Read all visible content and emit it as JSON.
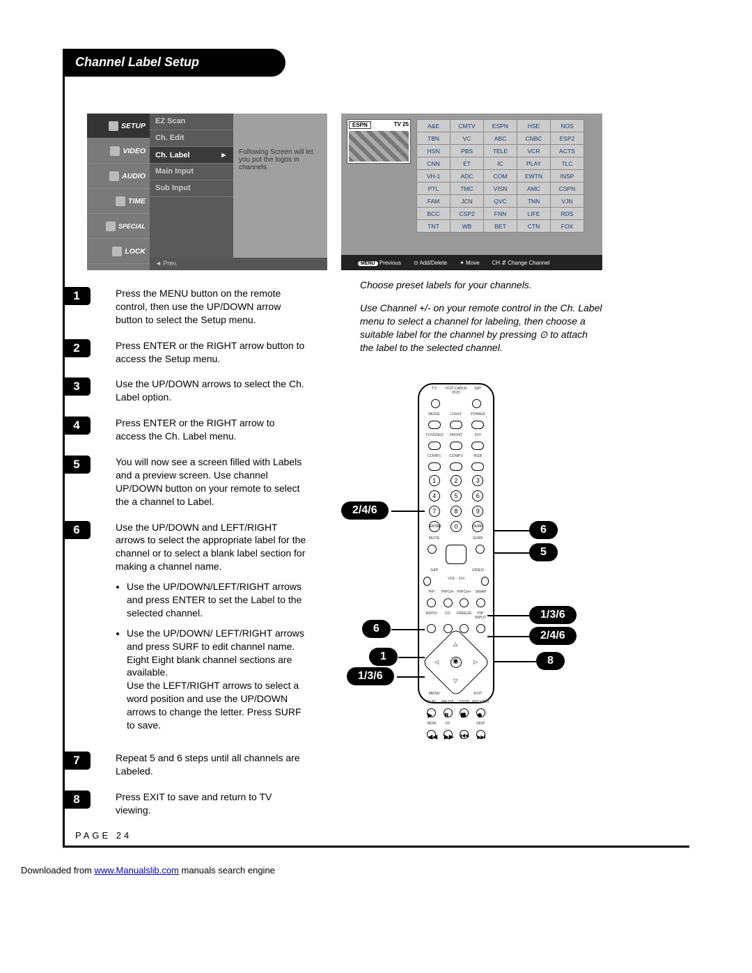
{
  "header": {
    "title": "Channel Label Setup"
  },
  "menu": {
    "tabs": [
      "SETUP",
      "VIDEO",
      "AUDIO",
      "TIME",
      "SPECIAL",
      "LOCK"
    ],
    "items": [
      "EZ Scan",
      "Ch. Edit",
      "Ch. Label",
      "Main Input",
      "Sub Input"
    ],
    "desc": "Following Screen will let you put the logos in channels",
    "footer_prev": "◄ Prev."
  },
  "labelscreen": {
    "preview_ch": "ESPN",
    "preview_num": "TV 25",
    "grid": [
      [
        "A&E",
        "CMTV",
        "ESPN",
        "HSE",
        "NOS"
      ],
      [
        "TBN",
        "VC",
        "ABC",
        "CNBC",
        "ESP2"
      ],
      [
        "HSN",
        "PBS",
        "TELE",
        "VCR",
        "ACTS"
      ],
      [
        "CNN",
        "ET",
        "IC",
        "PLAY",
        "TLC"
      ],
      [
        "VH-1",
        "ADC",
        "COM",
        "EWTN",
        "INSP"
      ],
      [
        "PTL",
        "TMC",
        "VISN",
        "AMC",
        "CSPN"
      ],
      [
        "FAM",
        "JCN",
        "QVC",
        "TNN",
        "VJN"
      ],
      [
        "BCC",
        "CSP2",
        "FNN",
        "LIFE",
        "RDS"
      ],
      [
        "TNT",
        "WB",
        "BET",
        "CTN",
        "FOX"
      ]
    ],
    "footer": {
      "menu": "MENU",
      "prev": "Previous",
      "add": "Add/Delete",
      "move": "Move",
      "ch": "CH",
      "change": "Change Channel"
    }
  },
  "italic": {
    "p1": "Choose preset labels for your channels.",
    "p2": "Use Channel +/- on your remote control in the Ch. Label menu to select a channel for labeling, then choose a suitable label for the channel by pressing ⊙ to attach the label to the selected channel."
  },
  "steps": [
    {
      "n": "1",
      "t": "Press the MENU button on the remote control, then use the UP/DOWN arrow button to select the Setup menu."
    },
    {
      "n": "2",
      "t": "Press ENTER or the RIGHT arrow button to access the Setup menu."
    },
    {
      "n": "3",
      "t": "Use the UP/DOWN arrows to select the Ch. Label option."
    },
    {
      "n": "4",
      "t": "Press ENTER or the RIGHT arrow to access the Ch. Label menu."
    },
    {
      "n": "5",
      "t": "You will now see a screen filled with Labels and a preview screen. Use channel UP/DOWN button on your remote to select the a channel to Label."
    },
    {
      "n": "6",
      "t": "Use the UP/DOWN and LEFT/RIGHT arrows to select the appropriate label for the channel or to select  a blank label section for making a channel name.",
      "bullets": [
        "Use the UP/DOWN/LEFT/RIGHT arrows and press ENTER to set the Label to the selected channel.",
        "Use the UP/DOWN/ LEFT/RIGHT arrows and press SURF to edit channel name. Eight Eight blank channel sections are available.\nUse the LEFT/RIGHT arrows to select a word position and use the UP/DOWN arrows to change the letter. Press SURF to save."
      ]
    },
    {
      "n": "7",
      "t": "Repeat 5 and 6 steps until all channels are Labeled."
    },
    {
      "n": "8",
      "t": "Press EXIT to save and return to TV viewing."
    }
  ],
  "remote": {
    "row1": [
      "TV",
      "VCR CABLE DVD",
      "SAT"
    ],
    "row2": [
      "MODE",
      "LIGHT",
      "POWER"
    ],
    "row3": [
      "TV/VIDEO",
      "FRONT",
      "DVI"
    ],
    "row4": [
      "COMP1",
      "COMP2",
      "RGB"
    ],
    "numpad": [
      [
        "1",
        "2",
        "3"
      ],
      [
        "4",
        "5",
        "6"
      ],
      [
        "7",
        "8",
        "9"
      ],
      [
        "ENTER",
        "0",
        "SURF"
      ]
    ],
    "midrow": [
      "MUTE",
      "",
      "SURF"
    ],
    "midrow2": [
      "SAP",
      "",
      "VIDEO"
    ],
    "vol_ch": [
      "VOL",
      "CH"
    ],
    "pip_row": [
      "PIP",
      "PIPCH-",
      "PIPCH+",
      "SWAP"
    ],
    "ratio_row": [
      "RATIO",
      "CC",
      "FREEZE",
      "PIP INPUT"
    ],
    "dpad_labels": {
      "menu": "MENU",
      "exit": "EXIT"
    },
    "play_row": [
      "PLAY",
      "PAUSE",
      "STOP",
      "RECORD"
    ],
    "ff_row": [
      "REW",
      "FF",
      "",
      "SKIP"
    ]
  },
  "callouts": {
    "c1": "2/4/6",
    "c2": "6",
    "c3": "5",
    "c4": "1/3/6",
    "c5": "2/4/6",
    "c6": "6",
    "c7": "1",
    "c8": "1/3/6",
    "c9": "8"
  },
  "page": "PAGE 24",
  "footer": {
    "pre": "Downloaded from ",
    "link": "www.Manualslib.com",
    "post": " manuals search engine"
  }
}
